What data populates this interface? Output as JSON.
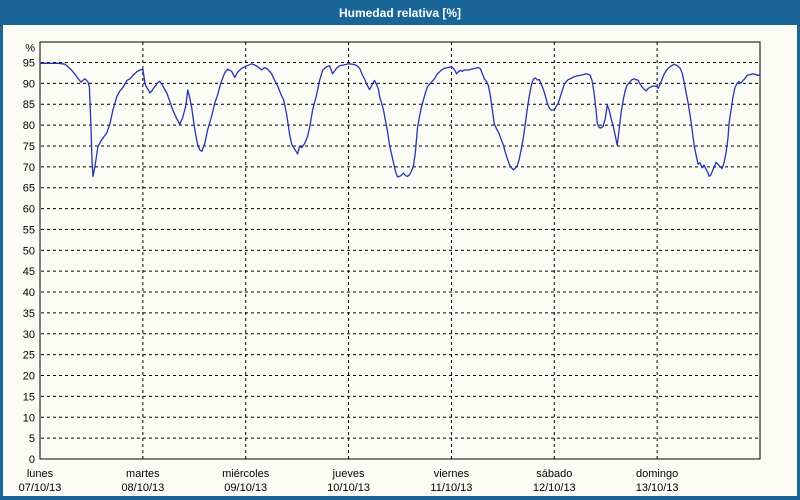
{
  "window": {
    "title": "Humedad relativa [%]"
  },
  "colors": {
    "titlebar_bg": "#1A6598",
    "window_border": "#1A6598",
    "chart_bg": "#FCFCF6",
    "line": "#2433B4",
    "grid": "#000000",
    "text": "#000000"
  },
  "chart_data": {
    "type": "line",
    "title": "Humedad relativa [%]",
    "ylabel": "%",
    "xlabel": "",
    "ylim": [
      0,
      100
    ],
    "y_ticks": [
      0,
      5,
      10,
      15,
      20,
      25,
      30,
      35,
      40,
      45,
      50,
      55,
      60,
      65,
      70,
      75,
      80,
      85,
      90,
      95
    ],
    "grid": "dashed",
    "legend": "none",
    "x_range_days": 7,
    "days": [
      {
        "name": "lunes",
        "date": "07/10/13"
      },
      {
        "name": "martes",
        "date": "08/10/13"
      },
      {
        "name": "miércoles",
        "date": "09/10/13"
      },
      {
        "name": "jueves",
        "date": "10/10/13"
      },
      {
        "name": "viernes",
        "date": "11/10/13"
      },
      {
        "name": "sábado",
        "date": "12/10/13"
      },
      {
        "name": "domingo",
        "date": "13/10/13"
      }
    ],
    "series": [
      {
        "name": "Humedad relativa",
        "color": "#2433B4",
        "x_unit": "days_since_2013-10-07",
        "points": [
          [
            0.0,
            94.8
          ],
          [
            0.06,
            94.8
          ],
          [
            0.12,
            94.8
          ],
          [
            0.18,
            94.8
          ],
          [
            0.243,
            94.6
          ],
          [
            0.301,
            93.3
          ],
          [
            0.34,
            92.2
          ],
          [
            0.369,
            91.2
          ],
          [
            0.398,
            90.3
          ],
          [
            0.437,
            91.1
          ],
          [
            0.466,
            90.4
          ],
          [
            0.48,
            89.0
          ],
          [
            0.495,
            80.0
          ],
          [
            0.505,
            72.0
          ],
          [
            0.515,
            67.7
          ],
          [
            0.534,
            70.0
          ],
          [
            0.563,
            74.8
          ],
          [
            0.592,
            76.2
          ],
          [
            0.621,
            77.2
          ],
          [
            0.65,
            78.2
          ],
          [
            0.68,
            80.3
          ],
          [
            0.709,
            83.6
          ],
          [
            0.748,
            86.9
          ],
          [
            0.777,
            88.2
          ],
          [
            0.806,
            89.0
          ],
          [
            0.845,
            90.7
          ],
          [
            0.874,
            91.1
          ],
          [
            0.903,
            91.9
          ],
          [
            0.942,
            92.8
          ],
          [
            0.971,
            93.2
          ],
          [
            1.0,
            93.4
          ],
          [
            1.019,
            90.3
          ],
          [
            1.029,
            89.4
          ],
          [
            1.049,
            88.6
          ],
          [
            1.068,
            87.7
          ],
          [
            1.087,
            88.2
          ],
          [
            1.117,
            89.3
          ],
          [
            1.146,
            90.2
          ],
          [
            1.165,
            90.5
          ],
          [
            1.194,
            89.4
          ],
          [
            1.233,
            87.7
          ],
          [
            1.262,
            85.7
          ],
          [
            1.291,
            83.6
          ],
          [
            1.33,
            81.5
          ],
          [
            1.359,
            80.2
          ],
          [
            1.388,
            81.9
          ],
          [
            1.417,
            84.5
          ],
          [
            1.437,
            88.4
          ],
          [
            1.456,
            86.5
          ],
          [
            1.476,
            84.0
          ],
          [
            1.495,
            80.5
          ],
          [
            1.515,
            77.5
          ],
          [
            1.534,
            75.2
          ],
          [
            1.553,
            74.1
          ],
          [
            1.573,
            73.7
          ],
          [
            1.602,
            75.7
          ],
          [
            1.631,
            79.0
          ],
          [
            1.67,
            82.3
          ],
          [
            1.699,
            85.3
          ],
          [
            1.728,
            87.3
          ],
          [
            1.757,
            90.0
          ],
          [
            1.796,
            92.5
          ],
          [
            1.825,
            93.4
          ],
          [
            1.864,
            92.9
          ],
          [
            1.893,
            91.4
          ],
          [
            1.922,
            92.7
          ],
          [
            1.961,
            93.6
          ],
          [
            2.0,
            94.1
          ],
          [
            2.058,
            94.7
          ],
          [
            2.087,
            94.4
          ],
          [
            2.117,
            94.0
          ],
          [
            2.155,
            93.2
          ],
          [
            2.184,
            93.8
          ],
          [
            2.214,
            93.4
          ],
          [
            2.252,
            92.3
          ],
          [
            2.282,
            90.7
          ],
          [
            2.311,
            89.4
          ],
          [
            2.34,
            87.5
          ],
          [
            2.369,
            86.0
          ],
          [
            2.398,
            82.5
          ],
          [
            2.427,
            77.8
          ],
          [
            2.447,
            75.4
          ],
          [
            2.476,
            74.2
          ],
          [
            2.505,
            73.1
          ],
          [
            2.524,
            75.0
          ],
          [
            2.544,
            74.6
          ],
          [
            2.573,
            75.6
          ],
          [
            2.602,
            77.3
          ],
          [
            2.621,
            79.4
          ],
          [
            2.65,
            83.6
          ],
          [
            2.689,
            87.3
          ],
          [
            2.718,
            90.7
          ],
          [
            2.748,
            93.2
          ],
          [
            2.786,
            94.0
          ],
          [
            2.816,
            94.2
          ],
          [
            2.845,
            92.3
          ],
          [
            2.883,
            93.6
          ],
          [
            2.913,
            94.2
          ],
          [
            2.951,
            94.4
          ],
          [
            2.981,
            94.6
          ],
          [
            3.0,
            94.7
          ],
          [
            3.039,
            94.6
          ],
          [
            3.078,
            94.3
          ],
          [
            3.107,
            93.6
          ],
          [
            3.136,
            91.9
          ],
          [
            3.155,
            91.1
          ],
          [
            3.175,
            89.8
          ],
          [
            3.204,
            88.5
          ],
          [
            3.223,
            89.4
          ],
          [
            3.252,
            90.7
          ],
          [
            3.272,
            89.8
          ],
          [
            3.291,
            88.6
          ],
          [
            3.301,
            86.9
          ],
          [
            3.32,
            85.3
          ],
          [
            3.34,
            83.6
          ],
          [
            3.359,
            81.0
          ],
          [
            3.379,
            78.4
          ],
          [
            3.398,
            75.2
          ],
          [
            3.417,
            73.1
          ],
          [
            3.437,
            71.0
          ],
          [
            3.456,
            68.9
          ],
          [
            3.476,
            67.6
          ],
          [
            3.505,
            67.8
          ],
          [
            3.534,
            68.5
          ],
          [
            3.553,
            67.9
          ],
          [
            3.573,
            67.7
          ],
          [
            3.592,
            68.1
          ],
          [
            3.612,
            69.0
          ],
          [
            3.631,
            70.3
          ],
          [
            3.65,
            73.5
          ],
          [
            3.67,
            79.4
          ],
          [
            3.689,
            81.9
          ],
          [
            3.709,
            84.4
          ],
          [
            3.728,
            86.1
          ],
          [
            3.748,
            87.8
          ],
          [
            3.767,
            89.2
          ],
          [
            3.806,
            90.3
          ],
          [
            3.835,
            91.1
          ],
          [
            3.864,
            92.3
          ],
          [
            3.903,
            93.2
          ],
          [
            3.932,
            93.6
          ],
          [
            3.971,
            93.8
          ],
          [
            4.0,
            94.0
          ],
          [
            4.019,
            93.6
          ],
          [
            4.039,
            92.9
          ],
          [
            4.049,
            92.3
          ],
          [
            4.068,
            92.8
          ],
          [
            4.087,
            93.1
          ],
          [
            4.107,
            92.9
          ],
          [
            4.126,
            93.2
          ],
          [
            4.165,
            93.2
          ],
          [
            4.194,
            93.4
          ],
          [
            4.233,
            93.6
          ],
          [
            4.262,
            93.8
          ],
          [
            4.282,
            93.5
          ],
          [
            4.301,
            92.3
          ],
          [
            4.32,
            91.1
          ],
          [
            4.34,
            90.5
          ],
          [
            4.359,
            89.5
          ],
          [
            4.379,
            87.0
          ],
          [
            4.398,
            83.5
          ],
          [
            4.417,
            80.3
          ],
          [
            4.437,
            79.2
          ],
          [
            4.466,
            77.8
          ],
          [
            4.485,
            76.5
          ],
          [
            4.505,
            75.2
          ],
          [
            4.524,
            73.5
          ],
          [
            4.544,
            71.9
          ],
          [
            4.563,
            70.6
          ],
          [
            4.583,
            69.8
          ],
          [
            4.602,
            69.3
          ],
          [
            4.621,
            69.7
          ],
          [
            4.641,
            70.4
          ],
          [
            4.66,
            71.9
          ],
          [
            4.68,
            74.4
          ],
          [
            4.699,
            76.9
          ],
          [
            4.718,
            80.3
          ],
          [
            4.738,
            83.9
          ],
          [
            4.757,
            87.0
          ],
          [
            4.777,
            89.5
          ],
          [
            4.796,
            91.0
          ],
          [
            4.816,
            91.3
          ],
          [
            4.835,
            90.8
          ],
          [
            4.854,
            90.9
          ],
          [
            4.874,
            89.8
          ],
          [
            4.893,
            88.6
          ],
          [
            4.913,
            87.0
          ],
          [
            4.932,
            85.3
          ],
          [
            4.951,
            84.1
          ],
          [
            4.971,
            83.6
          ],
          [
            5.0,
            83.6
          ],
          [
            5.019,
            84.5
          ],
          [
            5.039,
            85.3
          ],
          [
            5.058,
            86.8
          ],
          [
            5.078,
            88.3
          ],
          [
            5.097,
            89.8
          ],
          [
            5.117,
            90.4
          ],
          [
            5.136,
            90.9
          ],
          [
            5.155,
            91.1
          ],
          [
            5.184,
            91.5
          ],
          [
            5.223,
            91.8
          ],
          [
            5.252,
            91.9
          ],
          [
            5.282,
            92.1
          ],
          [
            5.311,
            92.3
          ],
          [
            5.33,
            92.2
          ],
          [
            5.35,
            91.9
          ],
          [
            5.369,
            90.5
          ],
          [
            5.388,
            87.5
          ],
          [
            5.408,
            83.0
          ],
          [
            5.417,
            80.5
          ],
          [
            5.437,
            79.4
          ],
          [
            5.456,
            79.3
          ],
          [
            5.476,
            79.8
          ],
          [
            5.495,
            81.5
          ],
          [
            5.515,
            84.8
          ],
          [
            5.534,
            83.6
          ],
          [
            5.553,
            81.5
          ],
          [
            5.573,
            79.8
          ],
          [
            5.592,
            77.5
          ],
          [
            5.612,
            75.2
          ],
          [
            5.631,
            79.0
          ],
          [
            5.65,
            83.0
          ],
          [
            5.67,
            86.0
          ],
          [
            5.689,
            88.3
          ],
          [
            5.709,
            89.6
          ],
          [
            5.738,
            90.4
          ],
          [
            5.757,
            90.9
          ],
          [
            5.777,
            91.1
          ],
          [
            5.796,
            90.9
          ],
          [
            5.816,
            90.7
          ],
          [
            5.835,
            89.8
          ],
          [
            5.854,
            89.1
          ],
          [
            5.874,
            88.6
          ],
          [
            5.893,
            88.2
          ],
          [
            5.913,
            88.8
          ],
          [
            5.942,
            89.2
          ],
          [
            5.971,
            89.4
          ],
          [
            6.0,
            89.2
          ],
          [
            6.01,
            88.8
          ],
          [
            6.029,
            89.8
          ],
          [
            6.049,
            91.1
          ],
          [
            6.068,
            92.2
          ],
          [
            6.087,
            93.0
          ],
          [
            6.107,
            93.6
          ],
          [
            6.126,
            94.0
          ],
          [
            6.146,
            94.3
          ],
          [
            6.165,
            94.6
          ],
          [
            6.184,
            94.4
          ],
          [
            6.204,
            94.1
          ],
          [
            6.223,
            93.6
          ],
          [
            6.243,
            92.5
          ],
          [
            6.262,
            90.3
          ],
          [
            6.282,
            87.8
          ],
          [
            6.301,
            85.3
          ],
          [
            6.32,
            82.3
          ],
          [
            6.34,
            79.0
          ],
          [
            6.359,
            75.2
          ],
          [
            6.379,
            72.8
          ],
          [
            6.398,
            70.6
          ],
          [
            6.417,
            71.0
          ],
          [
            6.437,
            69.8
          ],
          [
            6.456,
            70.4
          ],
          [
            6.476,
            69.4
          ],
          [
            6.495,
            68.5
          ],
          [
            6.505,
            67.7
          ],
          [
            6.524,
            68.1
          ],
          [
            6.544,
            69.4
          ],
          [
            6.563,
            70.5
          ],
          [
            6.573,
            71.1
          ],
          [
            6.592,
            70.6
          ],
          [
            6.612,
            70.0
          ],
          [
            6.631,
            69.6
          ],
          [
            6.65,
            70.9
          ],
          [
            6.67,
            73.5
          ],
          [
            6.689,
            76.9
          ],
          [
            6.699,
            80.3
          ],
          [
            6.718,
            83.6
          ],
          [
            6.738,
            86.9
          ],
          [
            6.757,
            89.0
          ],
          [
            6.777,
            90.0
          ],
          [
            6.796,
            90.4
          ],
          [
            6.816,
            90.1
          ],
          [
            6.835,
            90.7
          ],
          [
            6.854,
            91.2
          ],
          [
            6.874,
            91.9
          ],
          [
            6.903,
            92.1
          ],
          [
            6.932,
            92.3
          ],
          [
            6.961,
            92.1
          ],
          [
            6.981,
            91.9
          ],
          [
            7.0,
            92.1
          ]
        ]
      }
    ]
  }
}
